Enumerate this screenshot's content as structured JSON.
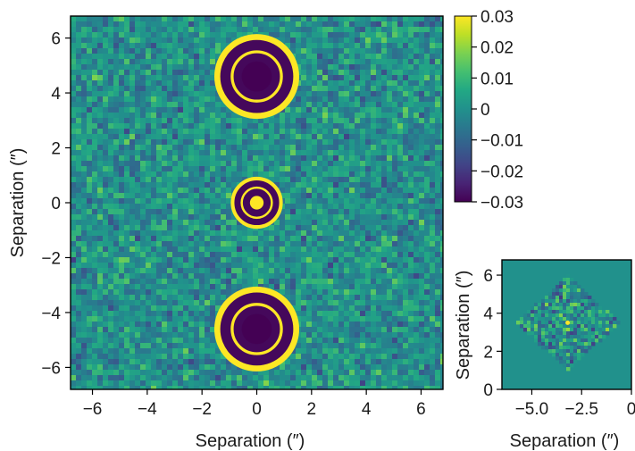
{
  "chart_data": [
    {
      "type": "heatmap",
      "title": "",
      "xlabel": "Separation (″)",
      "ylabel": "Separation (″)",
      "xlim": [
        -6.8,
        6.8
      ],
      "ylim": [
        -6.8,
        6.8
      ],
      "xticks": [
        -6,
        -4,
        -2,
        0,
        2,
        4,
        6
      ],
      "yticks": [
        -6,
        -4,
        -2,
        0,
        2,
        4,
        6
      ],
      "x_tick_labels": [
        "−6",
        "−4",
        "−2",
        "0",
        "2",
        "4",
        "6"
      ],
      "y_tick_labels": [
        "−6",
        "−4",
        "−2",
        "0",
        "2",
        "4",
        "6"
      ],
      "colormap": "viridis",
      "color_range": [
        -0.03,
        0.03
      ],
      "background": "noise around 0",
      "features": [
        {
          "x": 0,
          "y": 4.6,
          "core_radius": 0.55,
          "core_value": -0.03,
          "inner_ring_radius": 0.9,
          "outer_ring_radius": 1.55,
          "ring_value": 0.03
        },
        {
          "x": 0,
          "y": 0.0,
          "core_radius": 0.25,
          "core_value": 0.03,
          "inner_ring_radius": 0.55,
          "outer_ring_radius": 0.95,
          "ring_value": 0.03
        },
        {
          "x": 0,
          "y": -4.6,
          "core_radius": 0.55,
          "core_value": -0.03,
          "inner_ring_radius": 0.9,
          "outer_ring_radius": 1.55,
          "ring_value": 0.03
        }
      ]
    },
    {
      "type": "heatmap",
      "title": "",
      "xlabel": "Separation (″)",
      "ylabel": "Separation (″)",
      "xlim": [
        -6.5,
        0
      ],
      "ylim": [
        0,
        6.8
      ],
      "xticks": [
        -5.0,
        -2.5,
        0
      ],
      "yticks": [
        0,
        2,
        4,
        6
      ],
      "x_tick_labels": [
        "−5.0",
        "−2.5",
        "0"
      ],
      "y_tick_labels": [
        "0",
        "2",
        "4",
        "6"
      ],
      "colormap": "viridis",
      "color_range": [
        -0.03,
        0.03
      ],
      "features": [
        {
          "shape": "diamond",
          "center_x": -3.2,
          "center_y": 3.5,
          "half_width": 2.6,
          "half_height": 2.5,
          "peak_value": 0.03
        }
      ]
    }
  ],
  "colorbar": {
    "ticks": [
      0.03,
      0.02,
      0.01,
      0,
      -0.01,
      -0.02,
      -0.03
    ],
    "tick_labels": [
      "0.03",
      "0.02",
      "0.01",
      "0",
      "−0.01",
      "−0.02",
      "−0.03"
    ]
  },
  "colors": {
    "viridis_low": "#440154",
    "viridis_mid": "#21918c",
    "viridis_high": "#fde725",
    "axes": "#000000"
  }
}
